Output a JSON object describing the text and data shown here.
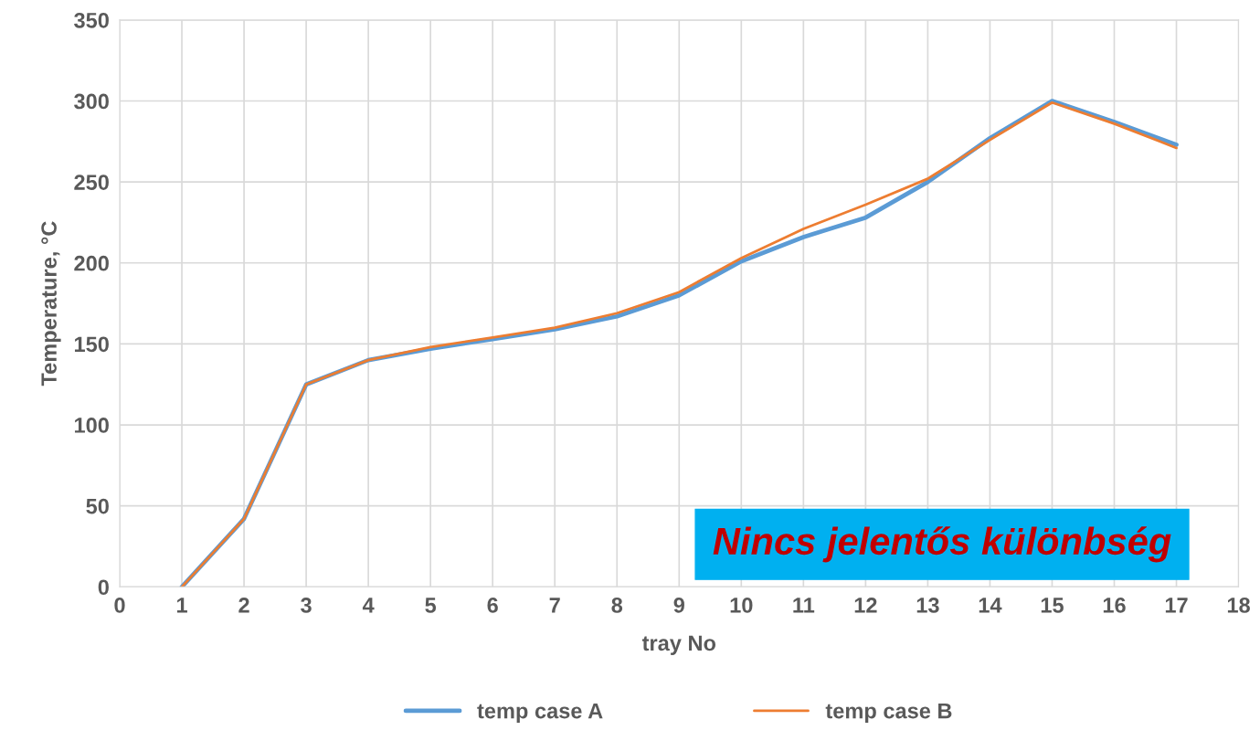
{
  "chart_data": {
    "type": "line",
    "xlabel": "tray No",
    "ylabel": "Temperature, °C",
    "x": [
      1,
      2,
      3,
      4,
      5,
      6,
      7,
      8,
      9,
      10,
      11,
      12,
      13,
      14,
      15,
      16,
      17
    ],
    "series": [
      {
        "name": "temp case A",
        "color": "#5b9bd5",
        "values": [
          0,
          42,
          125,
          140,
          147,
          153,
          159,
          167,
          180,
          201,
          216,
          228,
          250,
          277,
          300,
          287,
          273
        ]
      },
      {
        "name": "temp case B",
        "color": "#ed7d31",
        "values": [
          0,
          42,
          125,
          140,
          148,
          154,
          160,
          169,
          182,
          203,
          221,
          236,
          252,
          276,
          299,
          286,
          271
        ]
      }
    ],
    "xlim": [
      0,
      18
    ],
    "xticks": [
      0,
      1,
      2,
      3,
      4,
      5,
      6,
      7,
      8,
      9,
      10,
      11,
      12,
      13,
      14,
      15,
      16,
      17,
      18
    ],
    "ylim": [
      0,
      350
    ],
    "yticks": [
      0,
      50,
      100,
      150,
      200,
      250,
      300,
      350
    ],
    "grid": true,
    "legend": "bottom",
    "marker": "none",
    "line_style": "solid",
    "annotations": [
      "Nincs jelentős különbség"
    ]
  }
}
